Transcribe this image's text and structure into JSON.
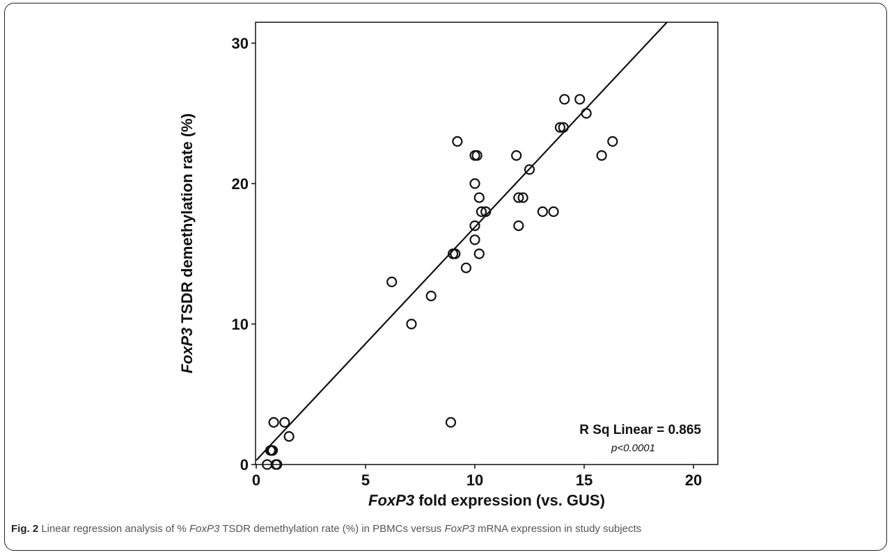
{
  "chart_data": {
    "type": "scatter",
    "title": "",
    "xlabel_italic": "FoxP3",
    "xlabel_rest": "fold expression (vs. GUS)",
    "ylabel_italic": "FoxP3",
    "ylabel_rest": "TSDR demethylation rate (%)",
    "xlim": [
      0,
      21
    ],
    "ylim": [
      0,
      31.5
    ],
    "xticks": [
      0,
      5,
      10,
      15,
      20
    ],
    "yticks": [
      0,
      10,
      20,
      30
    ],
    "grid": false,
    "series": [
      {
        "points": [
          [
            0.5,
            0
          ],
          [
            0.9,
            0
          ],
          [
            0.95,
            0
          ],
          [
            0.65,
            1
          ],
          [
            0.75,
            1
          ],
          [
            0.7,
            1
          ],
          [
            0.8,
            3
          ],
          [
            1.3,
            3
          ],
          [
            1.5,
            2
          ],
          [
            8.9,
            3
          ],
          [
            6.2,
            13
          ],
          [
            7.1,
            10
          ],
          [
            8.0,
            12
          ],
          [
            9.0,
            15
          ],
          [
            9.1,
            15
          ],
          [
            9.2,
            23
          ],
          [
            9.6,
            14
          ],
          [
            10.0,
            16
          ],
          [
            10.0,
            17
          ],
          [
            10.0,
            20
          ],
          [
            10.0,
            22
          ],
          [
            10.1,
            22
          ],
          [
            10.2,
            15
          ],
          [
            10.2,
            19
          ],
          [
            10.3,
            18
          ],
          [
            10.5,
            18
          ],
          [
            11.9,
            22
          ],
          [
            12.0,
            17
          ],
          [
            12.0,
            19
          ],
          [
            12.2,
            19
          ],
          [
            12.5,
            21
          ],
          [
            13.1,
            18
          ],
          [
            13.6,
            18
          ],
          [
            13.9,
            24
          ],
          [
            14.05,
            24
          ],
          [
            14.1,
            26
          ],
          [
            14.8,
            26
          ],
          [
            15.1,
            25
          ],
          [
            15.8,
            22
          ],
          [
            16.3,
            23
          ]
        ]
      }
    ],
    "fit_line": {
      "intercept": 0.3,
      "slope": 1.66
    },
    "annotation": {
      "main": "R Sq Linear = 0.865",
      "sub": "p<0.0001"
    }
  },
  "caption": {
    "label": "Fig. 2",
    "part1": " Linear regression analysis of % ",
    "gene1": "FoxP3",
    "part2": " TSDR demethylation rate (%) in PBMCs versus ",
    "gene2": "FoxP3",
    "part3": " mRNA expression in study subjects"
  }
}
